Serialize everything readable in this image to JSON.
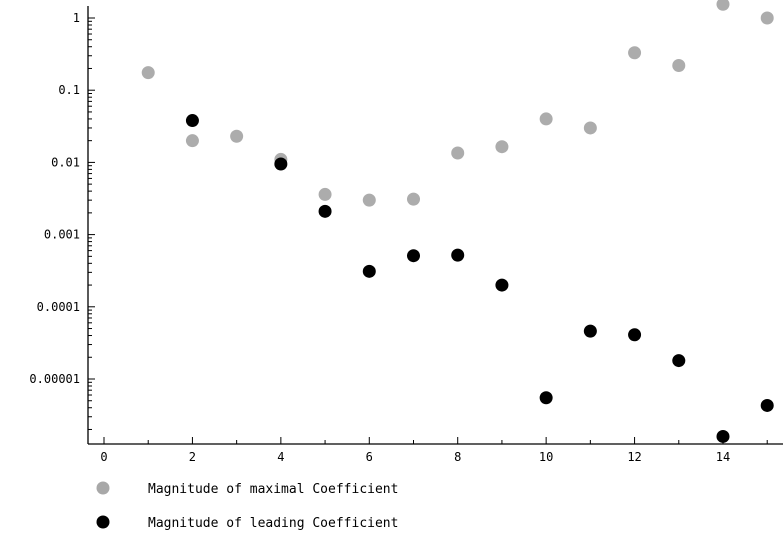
{
  "chart_data": {
    "type": "scatter",
    "title": "",
    "xlabel": "",
    "ylabel": "",
    "yscale": "log",
    "xlim": [
      -0.5,
      15.2
    ],
    "ylim": [
      1.1e-06,
      1.6
    ],
    "grid": false,
    "legend_position": "bottom-left",
    "x_ticks": [
      {
        "value": 0,
        "label": "0"
      },
      {
        "value": 2,
        "label": "2"
      },
      {
        "value": 4,
        "label": "4"
      },
      {
        "value": 6,
        "label": "6"
      },
      {
        "value": 8,
        "label": "8"
      },
      {
        "value": 10,
        "label": "10"
      },
      {
        "value": 12,
        "label": "12"
      },
      {
        "value": 14,
        "label": "14"
      }
    ],
    "x_minor_ticks": [
      1,
      3,
      5,
      7,
      9,
      11,
      13,
      15
    ],
    "y_ticks": [
      {
        "value": 1,
        "label": "1"
      },
      {
        "value": 0.1,
        "label": "0.1"
      },
      {
        "value": 0.01,
        "label": "0.01"
      },
      {
        "value": 0.001,
        "label": "0.001"
      },
      {
        "value": 0.0001,
        "label": "0.0001"
      },
      {
        "value": 1e-05,
        "label": "0.00001"
      }
    ],
    "series": [
      {
        "name": "Magnitude of maximal Coefficient",
        "color": "#a8a8a8",
        "points": [
          [
            1,
            0.175
          ],
          [
            2,
            0.02
          ],
          [
            3,
            0.023
          ],
          [
            4,
            0.011
          ],
          [
            5,
            0.0036
          ],
          [
            6,
            0.003
          ],
          [
            7,
            0.0031
          ],
          [
            8,
            0.0135
          ],
          [
            9,
            0.0165
          ],
          [
            10,
            0.04
          ],
          [
            11,
            0.03
          ],
          [
            12,
            0.33
          ],
          [
            13,
            0.22
          ],
          [
            14,
            1.55
          ],
          [
            15,
            1.0
          ]
        ]
      },
      {
        "name": "Magnitude of leading Coefficient",
        "color": "#000000",
        "points": [
          [
            2,
            0.038
          ],
          [
            4,
            0.0095
          ],
          [
            5,
            0.0021
          ],
          [
            6,
            0.00031
          ],
          [
            7,
            0.00051
          ],
          [
            8,
            0.00052
          ],
          [
            9,
            0.0002
          ],
          [
            10,
            5.5e-06
          ],
          [
            11,
            4.6e-05
          ],
          [
            12,
            4.1e-05
          ],
          [
            13,
            1.8e-05
          ],
          [
            14,
            1.6e-06
          ],
          [
            15,
            4.3e-06
          ]
        ]
      }
    ]
  }
}
